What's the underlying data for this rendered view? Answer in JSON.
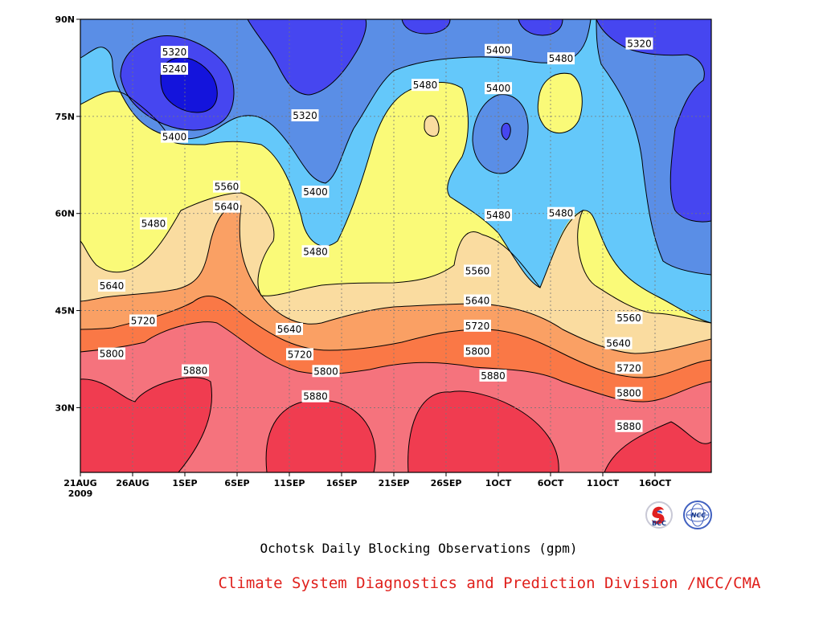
{
  "chart_data": {
    "type": "heatmap",
    "title": "Ochotsk Daily Blocking Observations (gpm)",
    "credit": "Climate System Diagnostics and Prediction Division /NCC/CMA",
    "x_tick_labels": [
      "21AUG",
      "26AUG",
      "1SEP",
      "6SEP",
      "11SEP",
      "16SEP",
      "21SEP",
      "26SEP",
      "1OCT",
      "6OCT",
      "11OCT",
      "16OCT"
    ],
    "x_year_label": "2009",
    "y_tick_labels": [
      "30N",
      "45N",
      "60N",
      "75N",
      "90N"
    ],
    "y_tick_values": [
      30,
      45,
      60,
      75,
      90
    ],
    "ylim": [
      20,
      90
    ],
    "x_range_days": [
      0,
      59
    ],
    "grid": true,
    "contour_interval": 80,
    "contour_levels": [
      5240,
      5320,
      5400,
      5480,
      5560,
      5640,
      5720,
      5800,
      5880
    ],
    "contour_labels": [
      {
        "value": "5320",
        "day": 9.0,
        "lat": 84.9
      },
      {
        "value": "5240",
        "day": 9.0,
        "lat": 82.3
      },
      {
        "value": "5320",
        "day": 21.5,
        "lat": 75.1
      },
      {
        "value": "5400",
        "day": 9.0,
        "lat": 71.8
      },
      {
        "value": "5560",
        "day": 14.0,
        "lat": 64.1
      },
      {
        "value": "5640",
        "day": 14.0,
        "lat": 61.0
      },
      {
        "value": "5400",
        "day": 22.5,
        "lat": 63.3
      },
      {
        "value": "5480",
        "day": 7.0,
        "lat": 58.4
      },
      {
        "value": "5480",
        "day": 22.5,
        "lat": 54.1
      },
      {
        "value": "5640",
        "day": 3.0,
        "lat": 48.8
      },
      {
        "value": "5720",
        "day": 6.0,
        "lat": 43.4
      },
      {
        "value": "5800",
        "day": 3.0,
        "lat": 38.3
      },
      {
        "value": "5880",
        "day": 11.0,
        "lat": 35.7
      },
      {
        "value": "5640",
        "day": 20.0,
        "lat": 42.1
      },
      {
        "value": "5720",
        "day": 21.0,
        "lat": 38.2
      },
      {
        "value": "5800",
        "day": 23.5,
        "lat": 35.6
      },
      {
        "value": "5880",
        "day": 22.5,
        "lat": 31.7
      },
      {
        "value": "5480",
        "day": 33.0,
        "lat": 79.8
      },
      {
        "value": "5400",
        "day": 40.0,
        "lat": 85.2
      },
      {
        "value": "5400",
        "day": 40.0,
        "lat": 79.3
      },
      {
        "value": "5480",
        "day": 46.0,
        "lat": 83.9
      },
      {
        "value": "5480",
        "day": 40.0,
        "lat": 59.7
      },
      {
        "value": "5480",
        "day": 46.0,
        "lat": 60.0
      },
      {
        "value": "5560",
        "day": 38.0,
        "lat": 51.1
      },
      {
        "value": "5640",
        "day": 38.0,
        "lat": 46.5
      },
      {
        "value": "5720",
        "day": 38.0,
        "lat": 42.6
      },
      {
        "value": "5800",
        "day": 38.0,
        "lat": 38.7
      },
      {
        "value": "5880",
        "day": 39.5,
        "lat": 34.9
      },
      {
        "value": "5560",
        "day": 52.5,
        "lat": 43.8
      },
      {
        "value": "5640",
        "day": 51.5,
        "lat": 39.9
      },
      {
        "value": "5720",
        "day": 52.5,
        "lat": 36.1
      },
      {
        "value": "5800",
        "day": 52.5,
        "lat": 32.2
      },
      {
        "value": "5880",
        "day": 52.5,
        "lat": 27.1
      },
      {
        "value": "5320",
        "day": 53.5,
        "lat": 86.2
      }
    ],
    "colors": {
      "5160": "#1414dc",
      "5240": "#4646f0",
      "5320": "#5a8ee6",
      "5400": "#64c8fa",
      "5480": "#fafa78",
      "5560": "#fadca0",
      "5640": "#faa064",
      "5720": "#fa7846",
      "5800": "#f5737d",
      "5880": "#f03c50"
    },
    "logos": {
      "left": "BCC",
      "right": "NCC"
    }
  }
}
